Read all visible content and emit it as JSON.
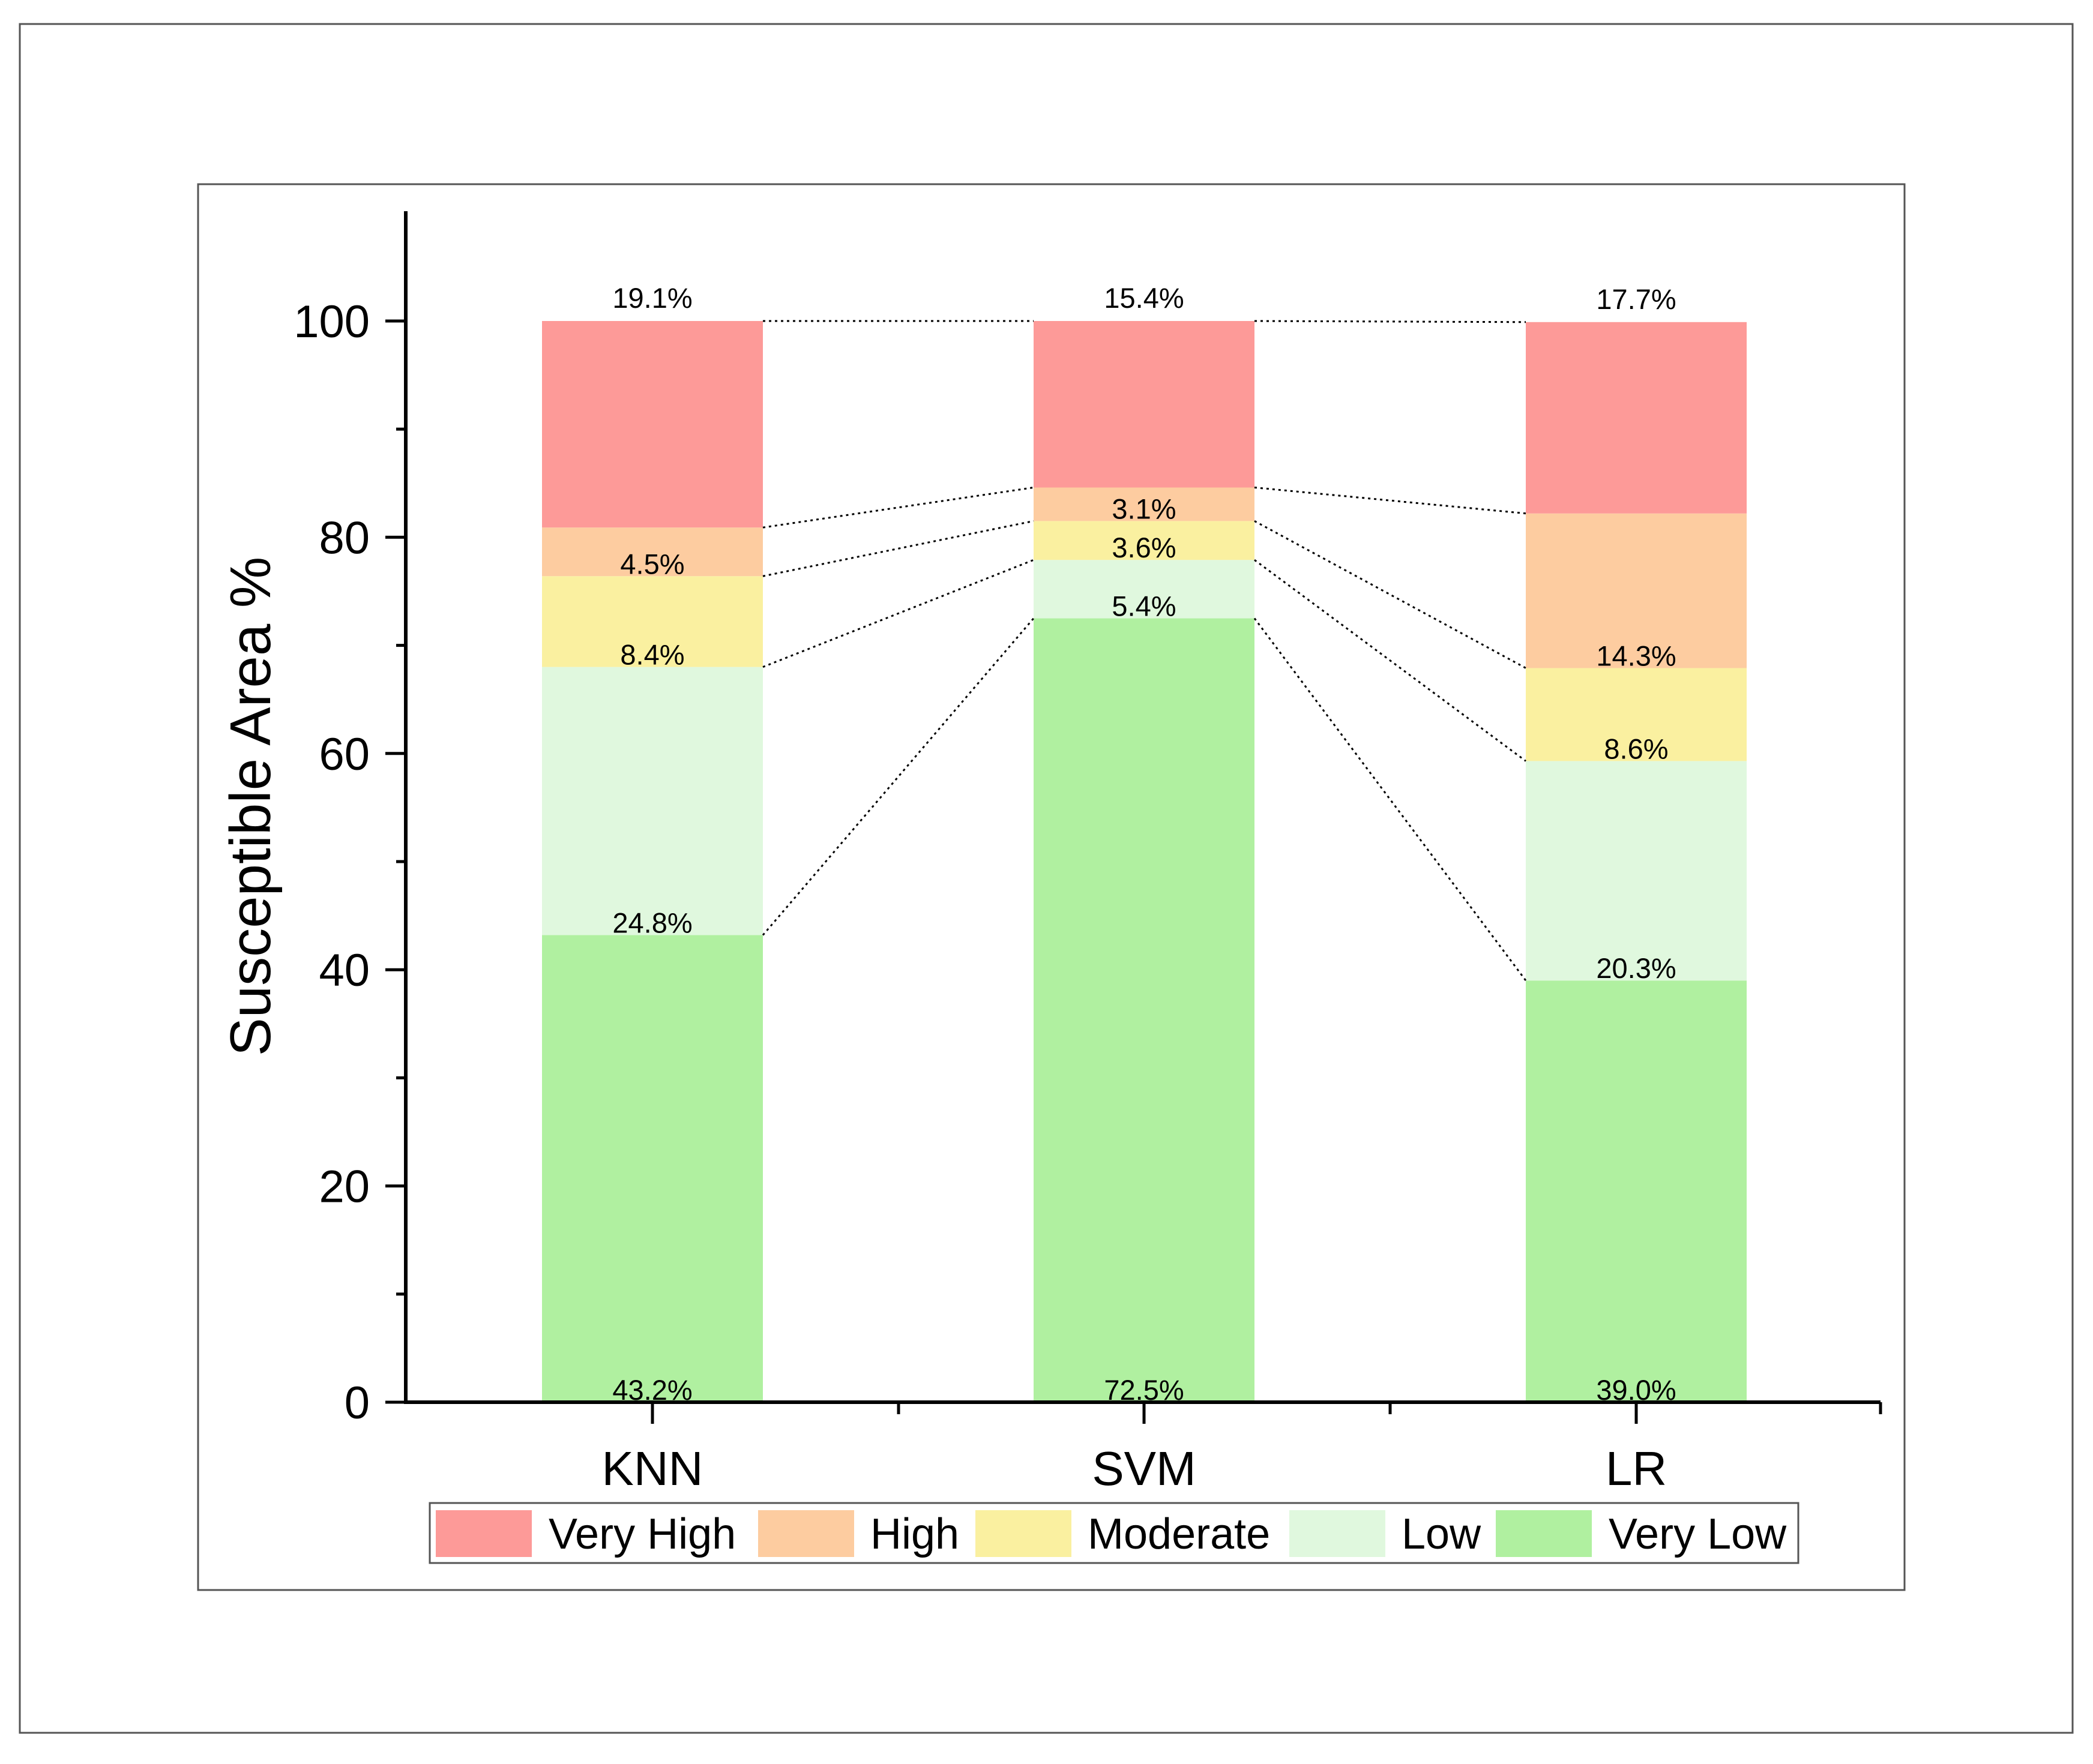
{
  "chart_data": {
    "type": "bar",
    "stacked": true,
    "title": "",
    "xlabel": "",
    "ylabel": "Susceptible Area %",
    "ylim": [
      0,
      110
    ],
    "yticks": [
      0,
      20,
      40,
      60,
      80,
      100
    ],
    "categories": [
      "KNN",
      "SVM",
      "LR"
    ],
    "series": [
      {
        "name": "Very Low",
        "color": "#b0f0a0",
        "values": [
          43.2,
          72.5,
          39.0
        ],
        "labels": [
          "43.2%",
          "72.5%",
          "39.0%"
        ]
      },
      {
        "name": "Low",
        "color": "#e0f8de",
        "values": [
          24.8,
          5.4,
          20.3
        ],
        "labels": [
          "24.8%",
          "5.4%",
          "20.3%"
        ]
      },
      {
        "name": "Moderate",
        "color": "#faf0a0",
        "values": [
          8.4,
          3.6,
          8.6
        ],
        "labels": [
          "8.4%",
          "3.6%",
          "8.6%"
        ]
      },
      {
        "name": "High",
        "color": "#fdcca0",
        "values": [
          4.5,
          3.1,
          14.3
        ],
        "labels": [
          "4.5%",
          "3.1%",
          "14.3%"
        ]
      },
      {
        "name": "Very High",
        "color": "#fd9a98",
        "values": [
          19.1,
          15.4,
          17.7
        ],
        "labels": [
          "19.1%",
          "15.4%",
          "17.7%"
        ]
      }
    ],
    "legend_order": [
      "Very High",
      "High",
      "Moderate",
      "Low",
      "Very Low"
    ],
    "legend_position": "bottom",
    "connector_lines": "dotted"
  }
}
